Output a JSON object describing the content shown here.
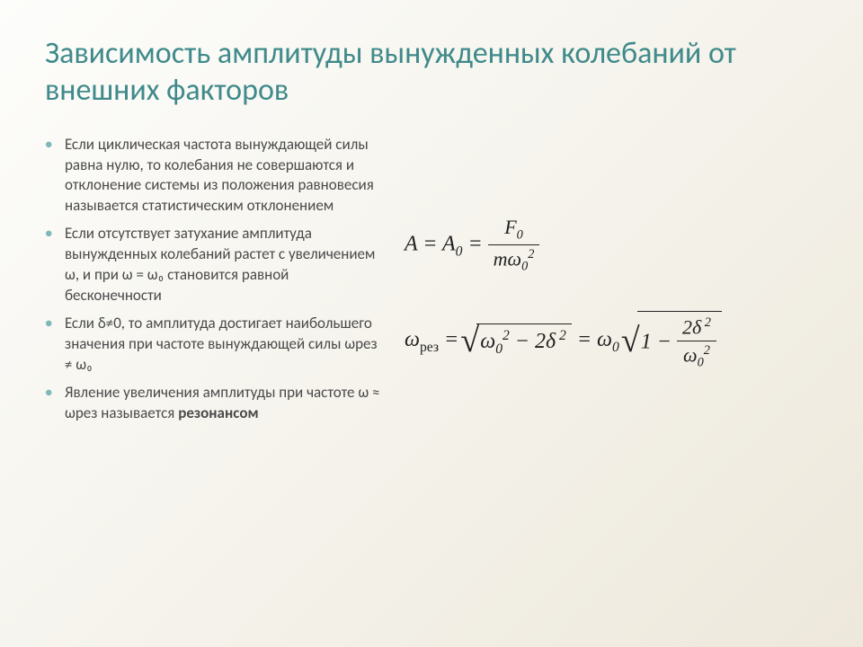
{
  "colors": {
    "title": "#3f8a8a",
    "bullet_marker": "#7fb8b8",
    "body_text": "#4a4a4a",
    "formula_text": "#222222",
    "background_start": "#fdfdfb",
    "background_end": "#ede8db"
  },
  "typography": {
    "title_fontsize": 34,
    "body_fontsize": 17,
    "formula_fontsize": 24,
    "title_weight": 400
  },
  "title": "Зависимость амплитуды вынужденных колебаний от внешних факторов",
  "bullets": [
    "Если циклическая частота вынуждающей силы равна нулю, то колебания не совершаются и отклонение системы из положения равновесия называется статистическим отклонением",
    "Если отсутствует затухание амплитуда вынужденных колебаний растет с увеличением ω, и при ω = ω₀ становится равной бесконечности",
    "Если δ≠0, то амплитуда достигает наибольшего значения при частоте вынуждающей силы ωрез ≠ ω₀",
    "Явление увеличения амплитуды при частоте ω ≈ ωрез называется <b>резонансом</b>"
  ],
  "formulas": {
    "f1": {
      "lhs": "A = A",
      "lhs_sub": "0",
      "eq": " = ",
      "num": "F",
      "num_sub": "0",
      "den_m": "m",
      "den_omega": "ω",
      "den_sub": "0",
      "den_sup": "2"
    },
    "f2": {
      "omega": "ω",
      "rez": "рез",
      "eq": " = ",
      "rad1_a": "ω",
      "rad1_a_sub": "0",
      "rad1_a_sup": "2",
      "rad1_minus": " − 2δ",
      "rad1_b_sup": " 2",
      "mid": " = ω",
      "mid_sub": "0",
      "rad2_one": "1 − ",
      "rad2_num": "2δ",
      "rad2_num_sup": " 2",
      "rad2_den": "ω",
      "rad2_den_sub": "0",
      "rad2_den_sup": "2"
    }
  }
}
